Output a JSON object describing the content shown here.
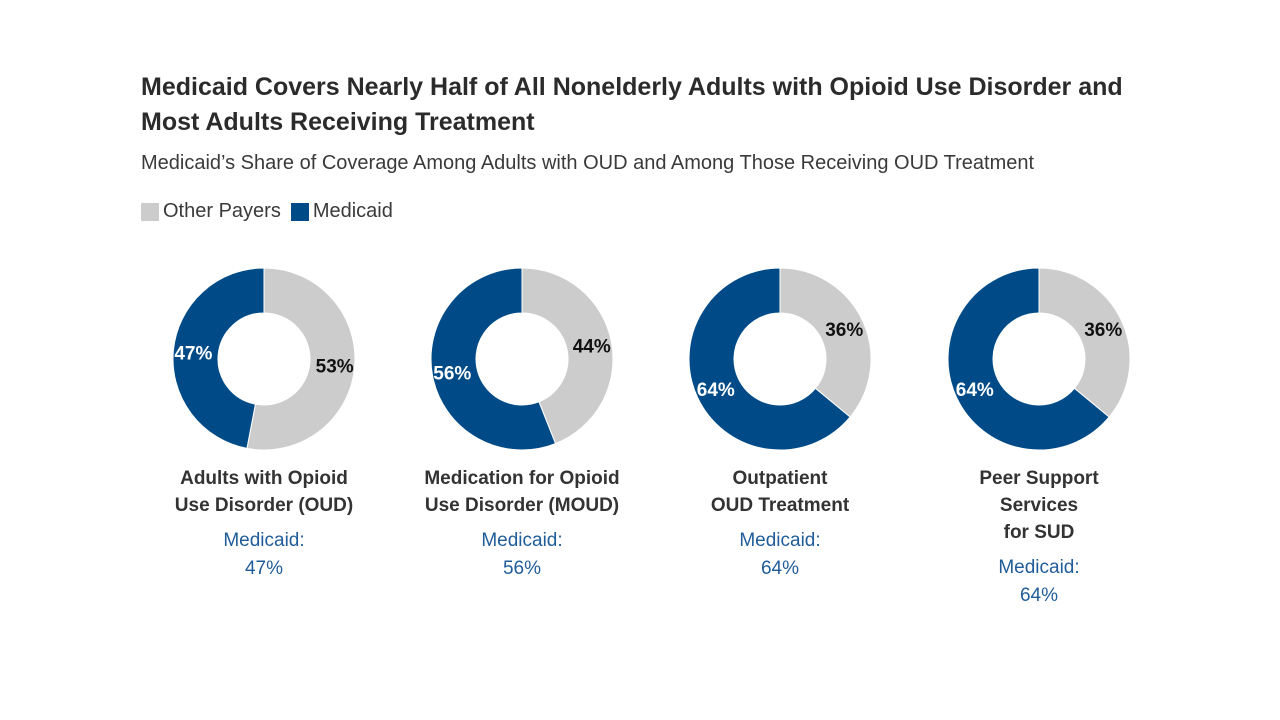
{
  "title": "Medicaid Covers Nearly Half of All Nonelderly Adults with Opioid Use Disorder and Most Adults Receiving Treatment",
  "subtitle": "Medicaid’s Share of Coverage Among Adults with OUD and Among Those Receiving OUD Treatment",
  "legend": [
    {
      "label": "Other Payers",
      "color": "#cccccc"
    },
    {
      "label": "Medicaid",
      "color": "#004b87"
    }
  ],
  "colors": {
    "medicaid": "#004b87",
    "other": "#cccccc",
    "caption_value": "#1f5c99"
  },
  "chart_data": [
    {
      "type": "pie",
      "series": [
        {
          "name": "Medicaid",
          "value": 47
        },
        {
          "name": "Other Payers",
          "value": 53
        }
      ],
      "labels": {
        "medicaid": "47%",
        "other": "53%"
      },
      "caption_lines": [
        "Adults with Opioid",
        "Use Disorder (OUD)"
      ],
      "medicaid_caption": [
        "Medicaid:",
        "47%"
      ]
    },
    {
      "type": "pie",
      "series": [
        {
          "name": "Medicaid",
          "value": 56
        },
        {
          "name": "Other Payers",
          "value": 44
        }
      ],
      "labels": {
        "medicaid": "56%",
        "other": "44%"
      },
      "caption_lines": [
        "Medication for Opioid",
        "Use Disorder (MOUD)"
      ],
      "medicaid_caption": [
        "Medicaid:",
        "56%"
      ]
    },
    {
      "type": "pie",
      "series": [
        {
          "name": "Medicaid",
          "value": 64
        },
        {
          "name": "Other Payers",
          "value": 36
        }
      ],
      "labels": {
        "medicaid": "64%",
        "other": "36%"
      },
      "caption_lines": [
        "Outpatient",
        "OUD Treatment"
      ],
      "medicaid_caption": [
        "Medicaid:",
        "64%"
      ]
    },
    {
      "type": "pie",
      "series": [
        {
          "name": "Medicaid",
          "value": 64
        },
        {
          "name": "Other Payers",
          "value": 36
        }
      ],
      "labels": {
        "medicaid": "64%",
        "other": "36%"
      },
      "caption_lines": [
        "Peer Support",
        "Services",
        "for SUD"
      ],
      "medicaid_caption": [
        "Medicaid:",
        "64%"
      ]
    }
  ]
}
